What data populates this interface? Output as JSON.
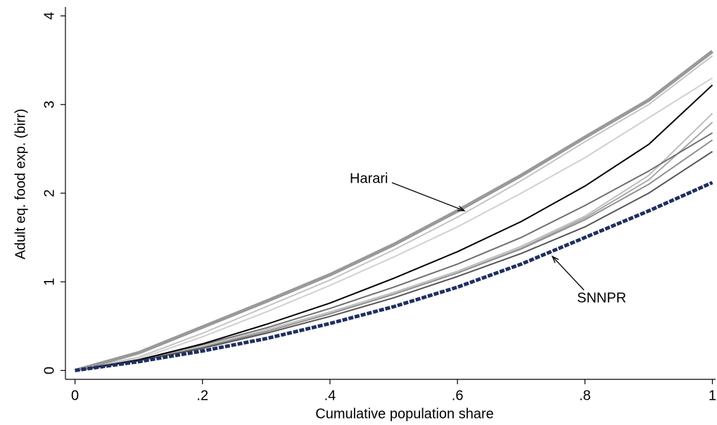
{
  "chart_data": {
    "type": "line",
    "x_label": "Cumulative population share",
    "y_label": "Adult eq. food exp. (birr)",
    "x": [
      0,
      0.1,
      0.2,
      0.3,
      0.4,
      0.5,
      0.6,
      0.7,
      0.8,
      0.9,
      1
    ],
    "xlim": [
      -0.015,
      1.005
    ],
    "ylim": [
      -0.1,
      4.1
    ],
    "xticks": [
      0,
      {
        "value": 0.2,
        "label": ".2"
      },
      {
        "value": 0.4,
        "label": ".4"
      },
      {
        "value": 0.6,
        "label": ".6"
      },
      {
        "value": 0.8,
        "label": ".8"
      },
      1
    ],
    "yticks": [
      0,
      1,
      2,
      3,
      4
    ],
    "series": [
      {
        "color": "#d0d0d0",
        "values": [
          0,
          0.13,
          0.38,
          0.66,
          0.96,
          1.28,
          1.62,
          2.0,
          2.4,
          2.85,
          3.3
        ]
      },
      {
        "color": "#c4c4c4",
        "values": [
          0,
          0.15,
          0.42,
          0.72,
          1.02,
          1.36,
          1.73,
          2.14,
          2.58,
          3.0,
          3.55
        ]
      },
      {
        "color": "#bdbdbd",
        "values": [
          0,
          0.11,
          0.27,
          0.46,
          0.66,
          0.88,
          1.12,
          1.4,
          1.74,
          2.2,
          2.9
        ]
      },
      {
        "color": "#a8a8a8",
        "values": [
          0,
          0.11,
          0.26,
          0.44,
          0.64,
          0.86,
          1.1,
          1.38,
          1.72,
          2.15,
          2.8
        ]
      },
      {
        "color": "#6e6e6e",
        "values": [
          0,
          0.12,
          0.29,
          0.48,
          0.7,
          0.94,
          1.2,
          1.5,
          1.86,
          2.25,
          2.68
        ]
      },
      {
        "color": "#909090",
        "values": [
          0,
          0.11,
          0.26,
          0.44,
          0.64,
          0.86,
          1.1,
          1.37,
          1.7,
          2.1,
          2.6
        ]
      },
      {
        "color": "#555555",
        "values": [
          0,
          0.11,
          0.25,
          0.42,
          0.61,
          0.82,
          1.06,
          1.32,
          1.62,
          2.0,
          2.47
        ]
      },
      {
        "color": "#000000",
        "values": [
          0,
          0.12,
          0.3,
          0.52,
          0.76,
          1.04,
          1.34,
          1.68,
          2.08,
          2.55,
          3.22
        ]
      },
      {
        "name": "Harari",
        "color": "#999999",
        "width": 5,
        "values": [
          0,
          0.2,
          0.49,
          0.78,
          1.08,
          1.42,
          1.8,
          2.2,
          2.63,
          3.05,
          3.6
        ]
      },
      {
        "name": "SNNPR",
        "color": "#1f2f5f",
        "width": 5,
        "dash": true,
        "values": [
          0,
          0.1,
          0.22,
          0.36,
          0.53,
          0.72,
          0.94,
          1.2,
          1.5,
          1.8,
          2.12
        ]
      }
    ]
  }
}
